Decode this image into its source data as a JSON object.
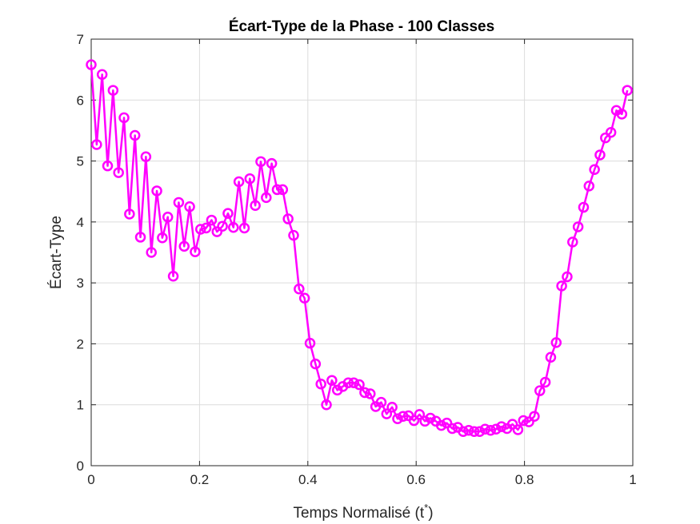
{
  "chart_data": {
    "type": "line",
    "title": "Écart-Type de la Phase - 100 Classes",
    "xlabel": "Temps Normalisé (t",
    "xlabel_sup": "*",
    "xlabel_close": ")",
    "ylabel": "Écart-Type",
    "xlim": [
      0,
      1
    ],
    "ylim": [
      0,
      7
    ],
    "xticks": [
      0,
      0.2,
      0.4,
      0.6,
      0.8,
      1
    ],
    "xtick_labels": [
      "0",
      "0.2",
      "0.4",
      "0.6",
      "0.8",
      "1"
    ],
    "yticks": [
      0,
      1,
      2,
      3,
      4,
      5,
      6,
      7
    ],
    "ytick_labels": [
      "0",
      "1",
      "2",
      "3",
      "4",
      "5",
      "6",
      "7"
    ],
    "grid": true,
    "series": [
      {
        "color": "#ff00ff",
        "marker": "circle",
        "x": [
          0.0,
          0.0101,
          0.0202,
          0.0303,
          0.0404,
          0.0505,
          0.0606,
          0.0707,
          0.0808,
          0.0909,
          0.101,
          0.1111,
          0.1212,
          0.1313,
          0.1414,
          0.1515,
          0.1616,
          0.1717,
          0.1818,
          0.1919,
          0.202,
          0.2121,
          0.2222,
          0.2323,
          0.2424,
          0.2525,
          0.2626,
          0.2727,
          0.2828,
          0.2929,
          0.303,
          0.3131,
          0.3232,
          0.3333,
          0.3434,
          0.3535,
          0.3636,
          0.3737,
          0.3838,
          0.3939,
          0.404,
          0.4141,
          0.4242,
          0.4343,
          0.4444,
          0.4545,
          0.4646,
          0.4747,
          0.4848,
          0.4949,
          0.5051,
          0.5152,
          0.5253,
          0.5354,
          0.5455,
          0.5556,
          0.5657,
          0.5758,
          0.5859,
          0.596,
          0.6061,
          0.6162,
          0.6263,
          0.6364,
          0.6465,
          0.6566,
          0.6667,
          0.6768,
          0.6869,
          0.697,
          0.7071,
          0.7172,
          0.7273,
          0.7374,
          0.7475,
          0.7576,
          0.7677,
          0.7778,
          0.7879,
          0.798,
          0.8081,
          0.8182,
          0.8283,
          0.8384,
          0.8485,
          0.8586,
          0.8687,
          0.8788,
          0.8889,
          0.899,
          0.9091,
          0.9192,
          0.9293,
          0.9394,
          0.9495,
          0.9596,
          0.9697,
          0.9798,
          0.9899
        ],
        "y": [
          6.58,
          5.27,
          6.42,
          4.92,
          6.16,
          4.81,
          5.71,
          4.13,
          5.42,
          3.75,
          5.07,
          3.5,
          4.51,
          3.74,
          4.08,
          3.11,
          4.32,
          3.6,
          4.25,
          3.51,
          3.88,
          3.9,
          4.03,
          3.84,
          3.93,
          4.14,
          3.91,
          4.66,
          3.9,
          4.71,
          4.27,
          4.99,
          4.4,
          4.96,
          4.53,
          4.53,
          4.05,
          3.78,
          2.9,
          2.75,
          2.01,
          1.67,
          1.34,
          1.0,
          1.4,
          1.24,
          1.3,
          1.36,
          1.36,
          1.33,
          1.2,
          1.18,
          0.97,
          1.04,
          0.85,
          0.96,
          0.77,
          0.81,
          0.82,
          0.74,
          0.84,
          0.73,
          0.78,
          0.73,
          0.66,
          0.7,
          0.61,
          0.63,
          0.56,
          0.58,
          0.56,
          0.56,
          0.6,
          0.58,
          0.6,
          0.64,
          0.61,
          0.68,
          0.59,
          0.74,
          0.72,
          0.81,
          1.23,
          1.37,
          1.78,
          2.02,
          2.95,
          3.1,
          3.67,
          3.92,
          4.24,
          4.59,
          4.86,
          5.1,
          5.38,
          5.47,
          5.83,
          5.77,
          6.16
        ]
      }
    ]
  }
}
